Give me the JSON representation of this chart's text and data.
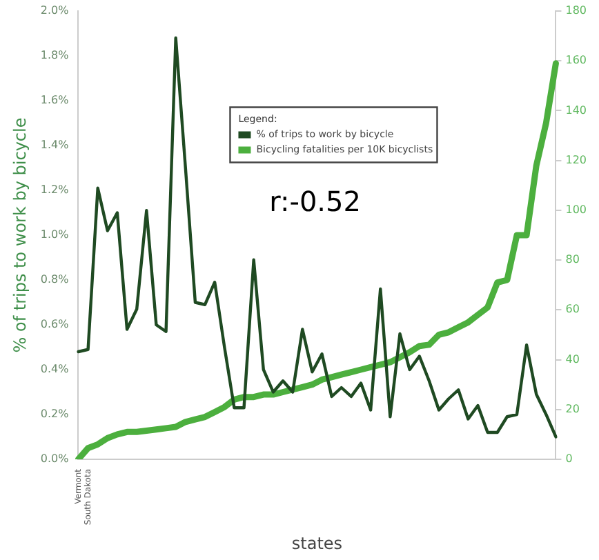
{
  "chart_data": {
    "type": "line",
    "xlabel": "states",
    "ylabel": "% of trips to work by bicycle",
    "legend_title": "Legend:",
    "legend": "top",
    "grid": false,
    "marker": "none",
    "line_style": "solid",
    "annotations": [
      "r:-0.52"
    ],
    "categories": [
      "Vermont",
      "South Dakota",
      null,
      null,
      null,
      null,
      null,
      null,
      null,
      null,
      null,
      null,
      null,
      null,
      null,
      null,
      null,
      null,
      null,
      null,
      null,
      null,
      null,
      null,
      null,
      null,
      null,
      null,
      null,
      null,
      null,
      null,
      null,
      null,
      null,
      null,
      null,
      null,
      null,
      null,
      null,
      null,
      null,
      null,
      null,
      null,
      null,
      null,
      null,
      null
    ],
    "ylim": [
      0,
      2
    ],
    "yticks": [
      {
        "value": 0,
        "label": "0.0%"
      },
      {
        "value": 0.2,
        "label": "0.2%"
      },
      {
        "value": 0.4,
        "label": "0.4%"
      },
      {
        "value": 0.6,
        "label": "0.6%"
      },
      {
        "value": 0.8,
        "label": "0.8%"
      },
      {
        "value": 1,
        "label": "1.0%"
      },
      {
        "value": 1.2,
        "label": "1.2%"
      },
      {
        "value": 1.4,
        "label": "1.4%"
      },
      {
        "value": 1.6,
        "label": "1.6%"
      },
      {
        "value": 1.8,
        "label": "1.8%"
      },
      {
        "value": 2,
        "label": "2.0%"
      }
    ],
    "y2lim": [
      0,
      180
    ],
    "y2ticks": [
      0,
      20,
      40,
      60,
      80,
      100,
      120,
      140,
      160,
      180
    ],
    "series": [
      {
        "name": "% of trips to work by bicycle",
        "color": "#1f4a22",
        "values": [
          0.48,
          0.49,
          1.21,
          1.02,
          1.1,
          0.58,
          0.67,
          1.11,
          0.6,
          0.57,
          1.88,
          1.3,
          0.7,
          0.69,
          0.79,
          0.5,
          0.23,
          0.23,
          0.89,
          0.4,
          0.3,
          0.35,
          0.3,
          0.58,
          0.39,
          0.47,
          0.28,
          0.32,
          0.28,
          0.34,
          0.22,
          0.76,
          0.19,
          0.56,
          0.4,
          0.46,
          0.35,
          0.22,
          0.27,
          0.31,
          0.18,
          0.24,
          0.12,
          0.12,
          0.19,
          0.2,
          0.51,
          0.29,
          0.2,
          0.1
        ]
      },
      {
        "name": "Bicycling fatalities per 10K bicyclists",
        "color": "#4caf3e",
        "axis": "y2",
        "values": [
          0,
          4.5,
          6,
          8.5,
          10,
          11,
          11,
          11.5,
          12,
          12.5,
          13,
          15,
          16,
          17,
          19,
          21,
          24,
          25,
          25,
          26,
          26,
          27,
          28,
          29,
          30,
          32,
          33,
          34,
          35,
          36,
          37,
          38,
          39,
          41,
          43,
          45.5,
          46,
          50,
          51,
          53,
          55,
          58,
          61,
          71,
          72,
          90,
          90,
          118,
          135,
          159
        ]
      }
    ]
  }
}
